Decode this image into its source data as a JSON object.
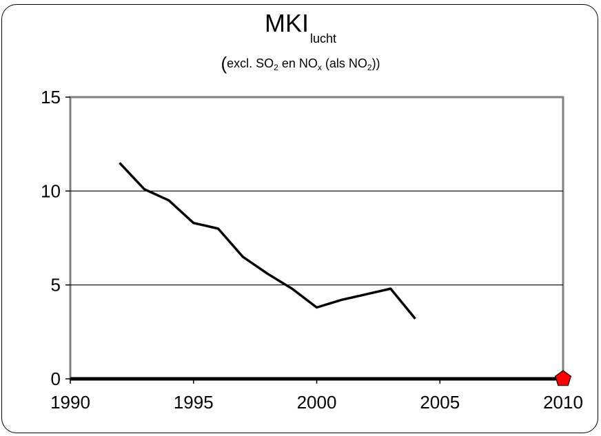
{
  "chart_data": {
    "type": "line",
    "title": "MKI",
    "title_subscript": "lucht",
    "subtitle_parts": {
      "open": "(",
      "text1": "excl. SO",
      "sub1": "2",
      "text2": " en NO",
      "sub2": "x",
      "text3": " (als NO",
      "sub3": "2",
      "text4": "))"
    },
    "xlim": [
      1990,
      2010
    ],
    "ylim": [
      0,
      15
    ],
    "x_ticks": [
      1990,
      1995,
      2000,
      2005,
      2010
    ],
    "y_ticks": [
      0,
      5,
      10,
      15
    ],
    "x_tick_labels": [
      "1990",
      "1995",
      "2000",
      "2005",
      "2010"
    ],
    "y_tick_labels": [
      "0",
      "5",
      "10",
      "15"
    ],
    "grid_y": true,
    "series": [
      {
        "x": [
          1992,
          1993,
          1994,
          1995,
          1996,
          1997,
          1998,
          1999,
          2000,
          2001,
          2002,
          2003,
          2004
        ],
        "y": [
          11.5,
          10.1,
          9.5,
          8.3,
          8.0,
          6.5,
          5.6,
          4.8,
          3.8,
          4.2,
          4.5,
          4.8,
          3.2
        ],
        "color": "#000000"
      },
      {
        "x": [
          1990,
          2010
        ],
        "y": [
          0,
          0
        ],
        "color": "#000000"
      }
    ],
    "target_marker": {
      "x": 2010,
      "y": 0,
      "color": "#ff0000"
    },
    "axis_color": "#808080"
  }
}
